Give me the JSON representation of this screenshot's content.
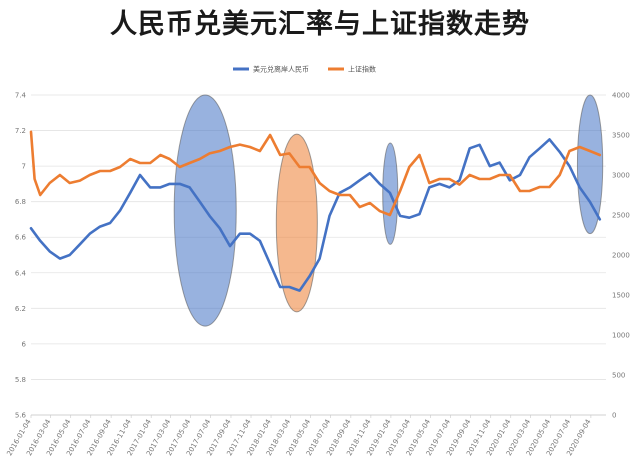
{
  "chart_data": {
    "type": "line",
    "title": "人民币兑美元汇率与上证指数走势",
    "xlabel": "",
    "ylabel": "",
    "y2label": "",
    "ylim": [
      5.6,
      7.4
    ],
    "y2lim": [
      0,
      4000
    ],
    "y_ticks": [
      "5.6",
      "5.8",
      "6",
      "6.2",
      "6.4",
      "6.6",
      "6.8",
      "7",
      "7.2",
      "7.4"
    ],
    "y2_ticks": [
      "0",
      "500",
      "1000",
      "1500",
      "2000",
      "2500",
      "3000",
      "3500",
      "4000"
    ],
    "x_ticks": [
      "2016-01-04",
      "2016-03-04",
      "2016-05-04",
      "2016-07-04",
      "2016-09-04",
      "2016-11-04",
      "2017-01-04",
      "2017-03-04",
      "2017-05-04",
      "2017-07-04",
      "2017-09-04",
      "2017-11-04",
      "2018-01-04",
      "2018-03-04",
      "2018-05-04",
      "2018-07-04",
      "2018-09-04",
      "2018-11-04",
      "2019-01-04",
      "2019-03-04",
      "2019-05-04",
      "2019-07-04",
      "2019-09-04",
      "2019-11-04",
      "2020-01-04",
      "2020-03-04",
      "2020-05-04",
      "2020-07-04",
      "2020-09-04"
    ],
    "grid": true,
    "legend_position": "top-center",
    "series": [
      {
        "name": "美元兑离岸人民币",
        "color": "#4472c4",
        "axis": "left",
        "x": [
          "2016-01-04",
          "2016-02-01",
          "2016-03-01",
          "2016-04-01",
          "2016-05-01",
          "2016-06-01",
          "2016-07-01",
          "2016-08-01",
          "2016-09-01",
          "2016-10-01",
          "2016-11-01",
          "2016-12-01",
          "2017-01-01",
          "2017-02-01",
          "2017-03-01",
          "2017-04-01",
          "2017-05-01",
          "2017-06-01",
          "2017-07-01",
          "2017-08-01",
          "2017-09-01",
          "2017-10-01",
          "2017-11-01",
          "2017-12-01",
          "2018-01-01",
          "2018-02-01",
          "2018-03-01",
          "2018-04-01",
          "2018-05-01",
          "2018-06-01",
          "2018-07-01",
          "2018-08-01",
          "2018-09-01",
          "2018-10-01",
          "2018-11-01",
          "2018-12-01",
          "2019-01-01",
          "2019-02-01",
          "2019-03-01",
          "2019-04-01",
          "2019-05-01",
          "2019-06-01",
          "2019-07-01",
          "2019-08-01",
          "2019-09-01",
          "2019-10-01",
          "2019-11-01",
          "2019-12-01",
          "2020-01-01",
          "2020-02-01",
          "2020-03-01",
          "2020-04-01",
          "2020-05-01",
          "2020-06-01",
          "2020-07-01",
          "2020-08-01",
          "2020-09-01",
          "2020-10-01"
        ],
        "values": [
          6.65,
          6.58,
          6.52,
          6.48,
          6.5,
          6.56,
          6.62,
          6.66,
          6.68,
          6.75,
          6.85,
          6.95,
          6.88,
          6.88,
          6.9,
          6.9,
          6.88,
          6.8,
          6.72,
          6.65,
          6.55,
          6.62,
          6.62,
          6.58,
          6.45,
          6.32,
          6.32,
          6.3,
          6.38,
          6.48,
          6.72,
          6.85,
          6.88,
          6.92,
          6.96,
          6.9,
          6.85,
          6.72,
          6.71,
          6.73,
          6.88,
          6.9,
          6.88,
          6.92,
          7.1,
          7.12,
          7.0,
          7.02,
          6.92,
          6.95,
          7.05,
          7.1,
          7.15,
          7.08,
          7.0,
          6.88,
          6.8,
          6.7
        ]
      },
      {
        "name": "上证指数",
        "color": "#ed7d31",
        "axis": "right",
        "x": [
          "2016-01-04",
          "2016-01-15",
          "2016-02-01",
          "2016-03-01",
          "2016-04-01",
          "2016-05-01",
          "2016-06-01",
          "2016-07-01",
          "2016-08-01",
          "2016-09-01",
          "2016-10-01",
          "2016-11-01",
          "2016-12-01",
          "2017-01-01",
          "2017-02-01",
          "2017-03-01",
          "2017-04-01",
          "2017-05-01",
          "2017-06-01",
          "2017-07-01",
          "2017-08-01",
          "2017-09-01",
          "2017-10-01",
          "2017-11-01",
          "2017-12-01",
          "2018-01-01",
          "2018-02-01",
          "2018-03-01",
          "2018-04-01",
          "2018-05-01",
          "2018-06-01",
          "2018-07-01",
          "2018-08-01",
          "2018-09-01",
          "2018-10-01",
          "2018-11-01",
          "2018-12-01",
          "2019-01-01",
          "2019-02-01",
          "2019-03-01",
          "2019-04-01",
          "2019-05-01",
          "2019-06-01",
          "2019-07-01",
          "2019-08-01",
          "2019-09-01",
          "2019-10-01",
          "2019-11-01",
          "2019-12-01",
          "2020-01-01",
          "2020-02-01",
          "2020-03-01",
          "2020-04-01",
          "2020-05-01",
          "2020-06-01",
          "2020-07-01",
          "2020-08-01",
          "2020-09-01",
          "2020-10-01"
        ],
        "values": [
          3540,
          2950,
          2750,
          2900,
          3000,
          2900,
          2930,
          3000,
          3050,
          3050,
          3100,
          3200,
          3150,
          3150,
          3250,
          3200,
          3100,
          3150,
          3200,
          3270,
          3300,
          3350,
          3380,
          3350,
          3300,
          3500,
          3250,
          3270,
          3100,
          3100,
          2900,
          2800,
          2750,
          2750,
          2600,
          2650,
          2550,
          2500,
          2800,
          3100,
          3250,
          2900,
          2950,
          2950,
          2880,
          3000,
          2950,
          2950,
          3000,
          3000,
          2800,
          2800,
          2850,
          2850,
          3000,
          3300,
          3350,
          3300,
          3250
        ]
      }
    ],
    "annotations": [
      {
        "shape": "ellipse",
        "color": "#4472c4",
        "x_start": "2017-03-15",
        "x_end": "2017-09-20",
        "y_top": 7.4,
        "y_bottom": 6.1
      },
      {
        "shape": "ellipse",
        "color": "#ed7d31",
        "x_start": "2018-01-20",
        "x_end": "2018-05-25",
        "y_top": 7.18,
        "y_bottom": 6.18
      },
      {
        "shape": "ellipse",
        "color": "#4472c4",
        "x_start": "2018-12-10",
        "x_end": "2019-01-25",
        "y_top": 7.13,
        "y_bottom": 6.56
      },
      {
        "shape": "ellipse",
        "color": "#4472c4",
        "x_start": "2020-07-25",
        "x_end": "2020-10-10",
        "y_top": 7.4,
        "y_bottom": 6.62
      }
    ]
  }
}
